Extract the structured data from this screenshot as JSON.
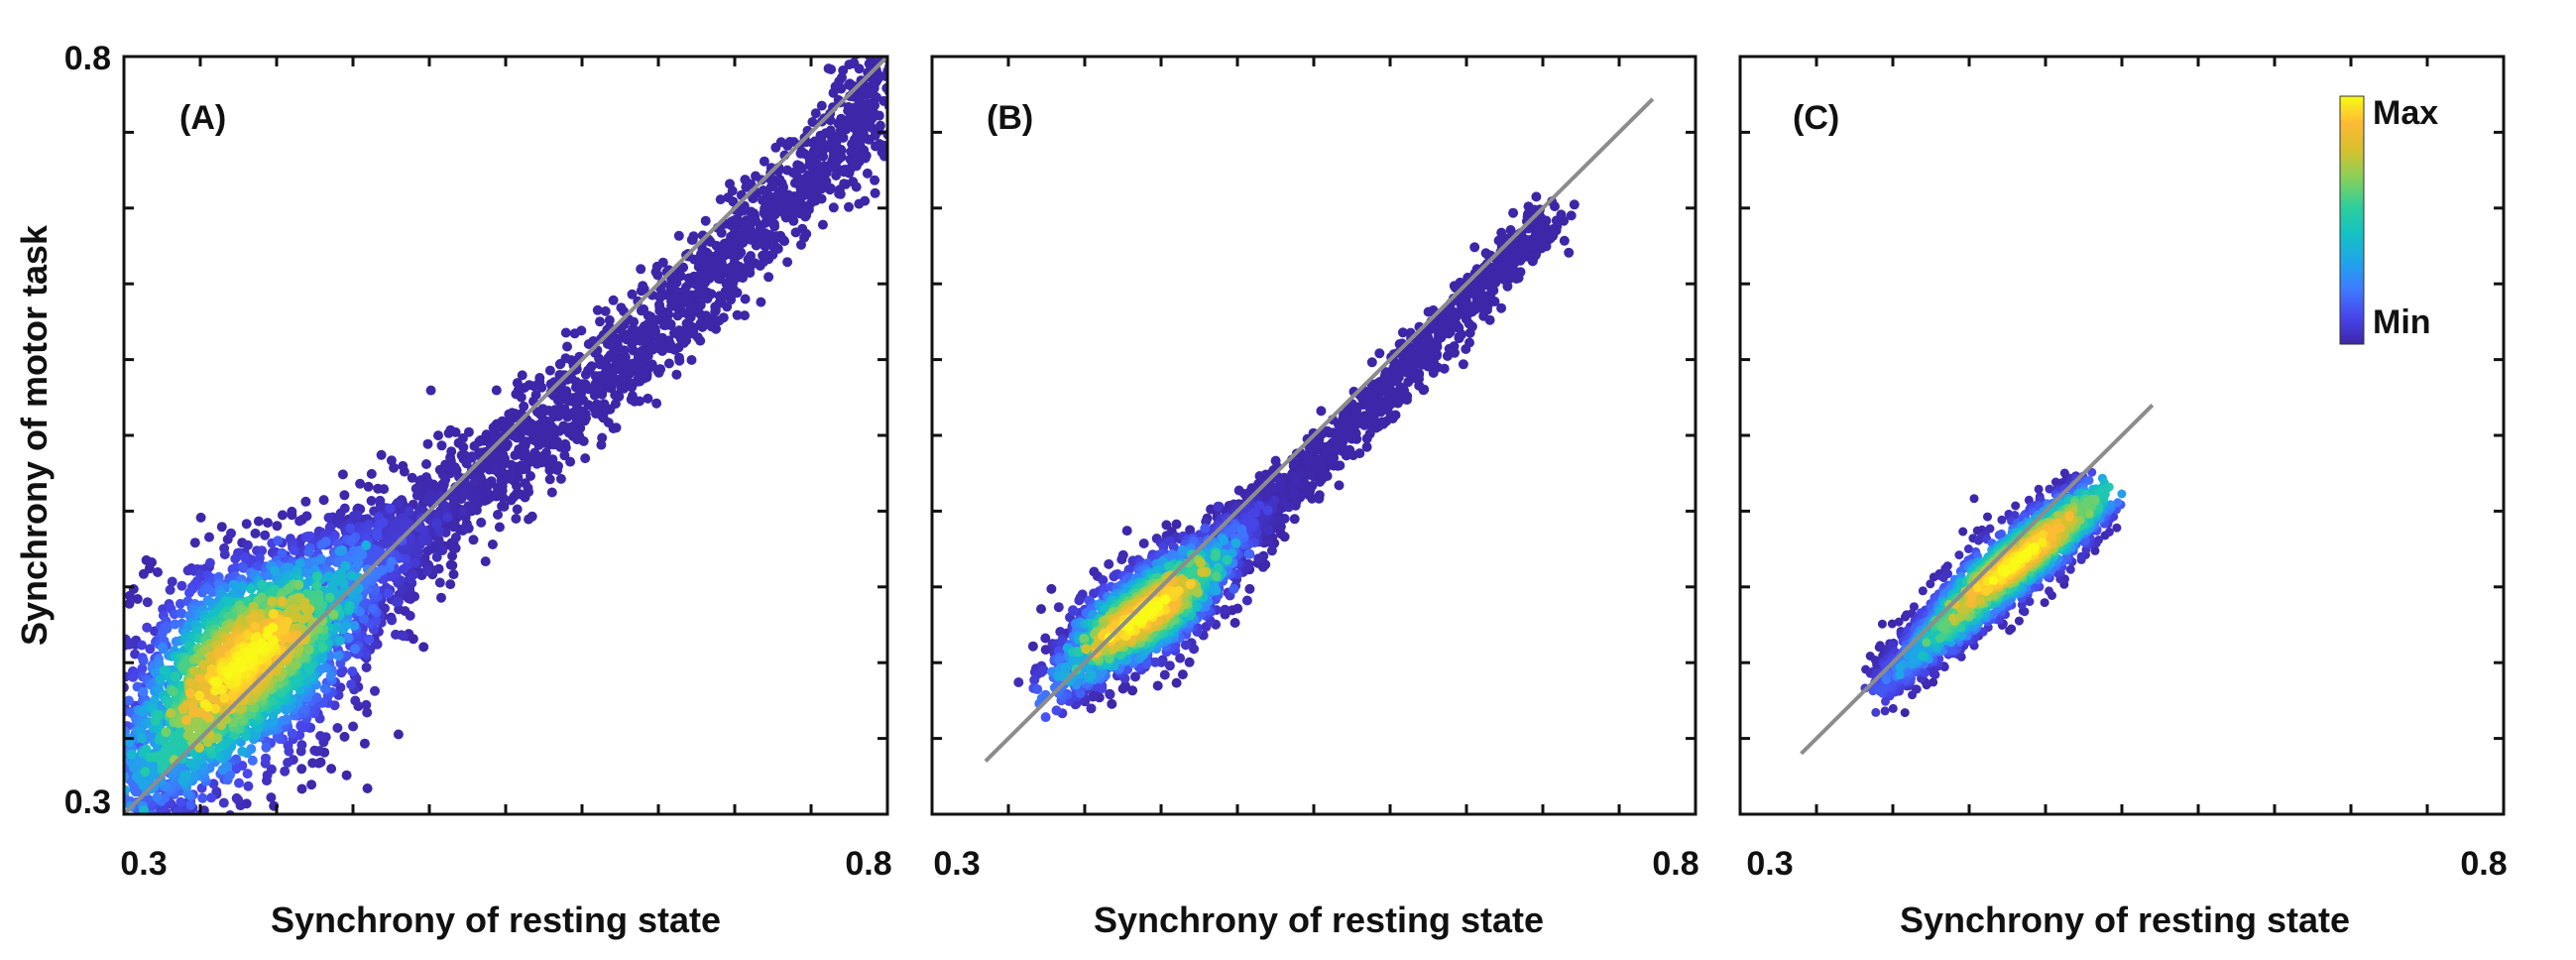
{
  "figure": {
    "ylabel": "Synchrony of motor task",
    "colorbar": {
      "max_label": "Max",
      "min_label": "Min",
      "colormap": [
        "#3e26a8",
        "#4746eb",
        "#3e7bff",
        "#1ea6e8",
        "#15c1c2",
        "#2fcf9a",
        "#85d05c",
        "#d4c22e",
        "#fdb935",
        "#f9fb15"
      ]
    },
    "line_color": "#8c8c8c"
  },
  "chart_data": [
    {
      "type": "scatter",
      "panel_label": "(A)",
      "xlabel": "Synchrony of resting state",
      "xlim": [
        0.3,
        0.8
      ],
      "ylim": [
        0.3,
        0.8
      ],
      "xticklabels": [
        "0.3",
        "0.8"
      ],
      "yticklabels": [
        "0.3",
        "0.8"
      ],
      "identity_line": {
        "x": [
          0.3,
          0.8
        ],
        "y": [
          0.3,
          0.8
        ]
      },
      "density_points": [
        {
          "x": 0.309,
          "y": 0.322
        },
        {
          "x": 0.32,
          "y": 0.334
        },
        {
          "x": 0.335,
          "y": 0.348
        },
        {
          "x": 0.35,
          "y": 0.366
        },
        {
          "x": 0.362,
          "y": 0.382
        },
        {
          "x": 0.372,
          "y": 0.394
        },
        {
          "x": 0.382,
          "y": 0.404
        },
        {
          "x": 0.393,
          "y": 0.414
        },
        {
          "x": 0.405,
          "y": 0.424
        },
        {
          "x": 0.416,
          "y": 0.433
        },
        {
          "x": 0.43,
          "y": 0.444
        },
        {
          "x": 0.446,
          "y": 0.456
        },
        {
          "x": 0.46,
          "y": 0.468
        },
        {
          "x": 0.475,
          "y": 0.48
        },
        {
          "x": 0.492,
          "y": 0.49
        },
        {
          "x": 0.51,
          "y": 0.504
        },
        {
          "x": 0.53,
          "y": 0.52
        },
        {
          "x": 0.55,
          "y": 0.536
        },
        {
          "x": 0.57,
          "y": 0.552
        },
        {
          "x": 0.59,
          "y": 0.568
        },
        {
          "x": 0.61,
          "y": 0.586
        },
        {
          "x": 0.63,
          "y": 0.604
        },
        {
          "x": 0.65,
          "y": 0.622
        },
        {
          "x": 0.67,
          "y": 0.64
        },
        {
          "x": 0.69,
          "y": 0.66
        },
        {
          "x": 0.71,
          "y": 0.68
        },
        {
          "x": 0.73,
          "y": 0.7
        },
        {
          "x": 0.75,
          "y": 0.72
        },
        {
          "x": 0.77,
          "y": 0.742
        },
        {
          "x": 0.785,
          "y": 0.768
        },
        {
          "x": 0.795,
          "y": 0.79
        }
      ]
    },
    {
      "type": "scatter",
      "panel_label": "(B)",
      "xlabel": "Synchrony of resting state",
      "xlim": [
        0.3,
        0.8
      ],
      "ylim": [
        0.3,
        0.8
      ],
      "xticklabels": [
        "0.3",
        "0.8"
      ],
      "yticklabels": [],
      "identity_line": {
        "x": [
          0.335,
          0.772
        ],
        "y": [
          0.335,
          0.772
        ]
      },
      "density_points": [
        {
          "x": 0.388,
          "y": 0.39
        },
        {
          "x": 0.4,
          "y": 0.402
        },
        {
          "x": 0.41,
          "y": 0.412
        },
        {
          "x": 0.42,
          "y": 0.42
        },
        {
          "x": 0.43,
          "y": 0.426
        },
        {
          "x": 0.44,
          "y": 0.432
        },
        {
          "x": 0.45,
          "y": 0.44
        },
        {
          "x": 0.46,
          "y": 0.448
        },
        {
          "x": 0.47,
          "y": 0.456
        },
        {
          "x": 0.48,
          "y": 0.464
        },
        {
          "x": 0.49,
          "y": 0.474
        },
        {
          "x": 0.5,
          "y": 0.484
        },
        {
          "x": 0.51,
          "y": 0.494
        },
        {
          "x": 0.52,
          "y": 0.504
        },
        {
          "x": 0.535,
          "y": 0.518
        },
        {
          "x": 0.55,
          "y": 0.532
        },
        {
          "x": 0.565,
          "y": 0.546
        },
        {
          "x": 0.58,
          "y": 0.56
        },
        {
          "x": 0.595,
          "y": 0.576
        },
        {
          "x": 0.61,
          "y": 0.592
        },
        {
          "x": 0.625,
          "y": 0.608
        },
        {
          "x": 0.64,
          "y": 0.624
        },
        {
          "x": 0.655,
          "y": 0.642
        },
        {
          "x": 0.67,
          "y": 0.66
        },
        {
          "x": 0.685,
          "y": 0.674
        },
        {
          "x": 0.7,
          "y": 0.688
        }
      ]
    },
    {
      "type": "scatter",
      "panel_label": "(C)",
      "xlabel": "Synchrony of resting state",
      "xlim": [
        0.3,
        0.8
      ],
      "ylim": [
        0.3,
        0.8
      ],
      "xticklabels": [
        "0.3",
        "0.8"
      ],
      "yticklabels": [],
      "identity_line": {
        "x": [
          0.34,
          0.57
        ],
        "y": [
          0.34,
          0.57
        ]
      },
      "density_points": [
        {
          "x": 0.4,
          "y": 0.39
        },
        {
          "x": 0.41,
          "y": 0.4
        },
        {
          "x": 0.42,
          "y": 0.41
        },
        {
          "x": 0.43,
          "y": 0.42
        },
        {
          "x": 0.44,
          "y": 0.43
        },
        {
          "x": 0.45,
          "y": 0.44
        },
        {
          "x": 0.46,
          "y": 0.45
        },
        {
          "x": 0.47,
          "y": 0.458
        },
        {
          "x": 0.48,
          "y": 0.466
        },
        {
          "x": 0.49,
          "y": 0.474
        },
        {
          "x": 0.5,
          "y": 0.482
        },
        {
          "x": 0.51,
          "y": 0.49
        },
        {
          "x": 0.52,
          "y": 0.498
        },
        {
          "x": 0.53,
          "y": 0.506
        }
      ]
    }
  ]
}
